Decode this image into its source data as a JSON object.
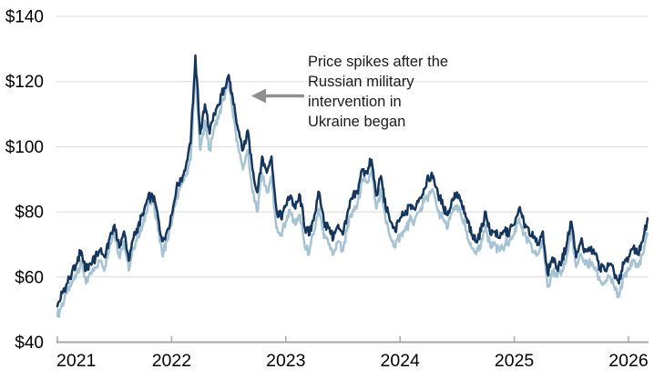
{
  "page": {
    "background": "#ffffff"
  },
  "chart_data": {
    "type": "line",
    "title": "",
    "xlabel": "",
    "ylabel": "",
    "grid": true,
    "legend": "none",
    "x_axis": {
      "range": [
        2021.0,
        2026.18
      ],
      "ticks": [
        {
          "label": "2021",
          "value": 2021
        },
        {
          "label": "2022",
          "value": 2022
        },
        {
          "label": "2023",
          "value": 2023
        },
        {
          "label": "2024",
          "value": 2024
        },
        {
          "label": "2025",
          "value": 2025
        },
        {
          "label": "2026",
          "value": 2026
        }
      ]
    },
    "y_axis": {
      "range": [
        40,
        145
      ],
      "gridline_values": [
        60,
        80,
        100,
        120,
        140
      ],
      "ticks": [
        {
          "label": "$140",
          "value": 140
        },
        {
          "label": "$120",
          "value": 120
        },
        {
          "label": "$100",
          "value": 100
        },
        {
          "label": "$80",
          "value": 80
        },
        {
          "label": "$60",
          "value": 60
        },
        {
          "label": "$40",
          "value": 40
        }
      ]
    },
    "x_start": 2021.0,
    "x_step_years": 0.0416667,
    "series": [
      {
        "name": "light-blue-series",
        "color": "#a6c3d3",
        "line_width": 2.5,
        "values": [
          48,
          52,
          55,
          58,
          61,
          65,
          58,
          61,
          63,
          65,
          63,
          70,
          74,
          66,
          71,
          62,
          69,
          73,
          76,
          82,
          83,
          77,
          67,
          71,
          76,
          84,
          88,
          91,
          96,
          123,
          99,
          108,
          99,
          106,
          110,
          115,
          120,
          109,
          100,
          93,
          99,
          86,
          80,
          92,
          86,
          91,
          75,
          73,
          77,
          80,
          76,
          79,
          69,
          68,
          74,
          81,
          72,
          70,
          67,
          71,
          68,
          76,
          80,
          82,
          90,
          89,
          93,
          81,
          87,
          77,
          72,
          69,
          73,
          74,
          77,
          77,
          80,
          83,
          85,
          86,
          80,
          78,
          75,
          80,
          82,
          78,
          74,
          69,
          67,
          70,
          76,
          69,
          70,
          68,
          70,
          71,
          73,
          78,
          73,
          71,
          68,
          67,
          71,
          57,
          62,
          60,
          62,
          66,
          74,
          63,
          67,
          64,
          64,
          63,
          59,
          58,
          60,
          57,
          54,
          60,
          62,
          65,
          63,
          67,
          73
        ]
      },
      {
        "name": "dark-navy-series",
        "color": "#14355e",
        "line_width": 2.5,
        "values": [
          51,
          55,
          58,
          61,
          64,
          68,
          62,
          64,
          66,
          68,
          66,
          72,
          76,
          69,
          74,
          65,
          72,
          76,
          79,
          84,
          85,
          80,
          71,
          74,
          79,
          87,
          90,
          94,
          101,
          128,
          104,
          113,
          104,
          110,
          113,
          118,
          122,
          113,
          105,
          99,
          105,
          93,
          86,
          97,
          92,
          97,
          81,
          78,
          82,
          85,
          81,
          85,
          75,
          73,
          79,
          86,
          77,
          75,
          72,
          76,
          73,
          80,
          84,
          86,
          93,
          92,
          96,
          85,
          91,
          81,
          77,
          74,
          78,
          79,
          82,
          81,
          84,
          87,
          90,
          91,
          85,
          82,
          79,
          84,
          86,
          82,
          78,
          73,
          71,
          74,
          80,
          73,
          74,
          72,
          74,
          74,
          76,
          81,
          77,
          75,
          72,
          70,
          74,
          61,
          66,
          63,
          65,
          70,
          77,
          66,
          71,
          68,
          68,
          67,
          63,
          62,
          64,
          61,
          58,
          64,
          66,
          69,
          67,
          71,
          78
        ]
      }
    ],
    "annotation": {
      "lines": [
        "Price spikes after the",
        "Russian military",
        "intervention in",
        "Ukraine began"
      ],
      "arrow_color": "#8f8f8f",
      "text_color": "#1a1a1a"
    },
    "colors": {
      "gridline": "#d9d9d9",
      "axis_line": "#a6a6a6",
      "tick_label": "#000000"
    }
  }
}
